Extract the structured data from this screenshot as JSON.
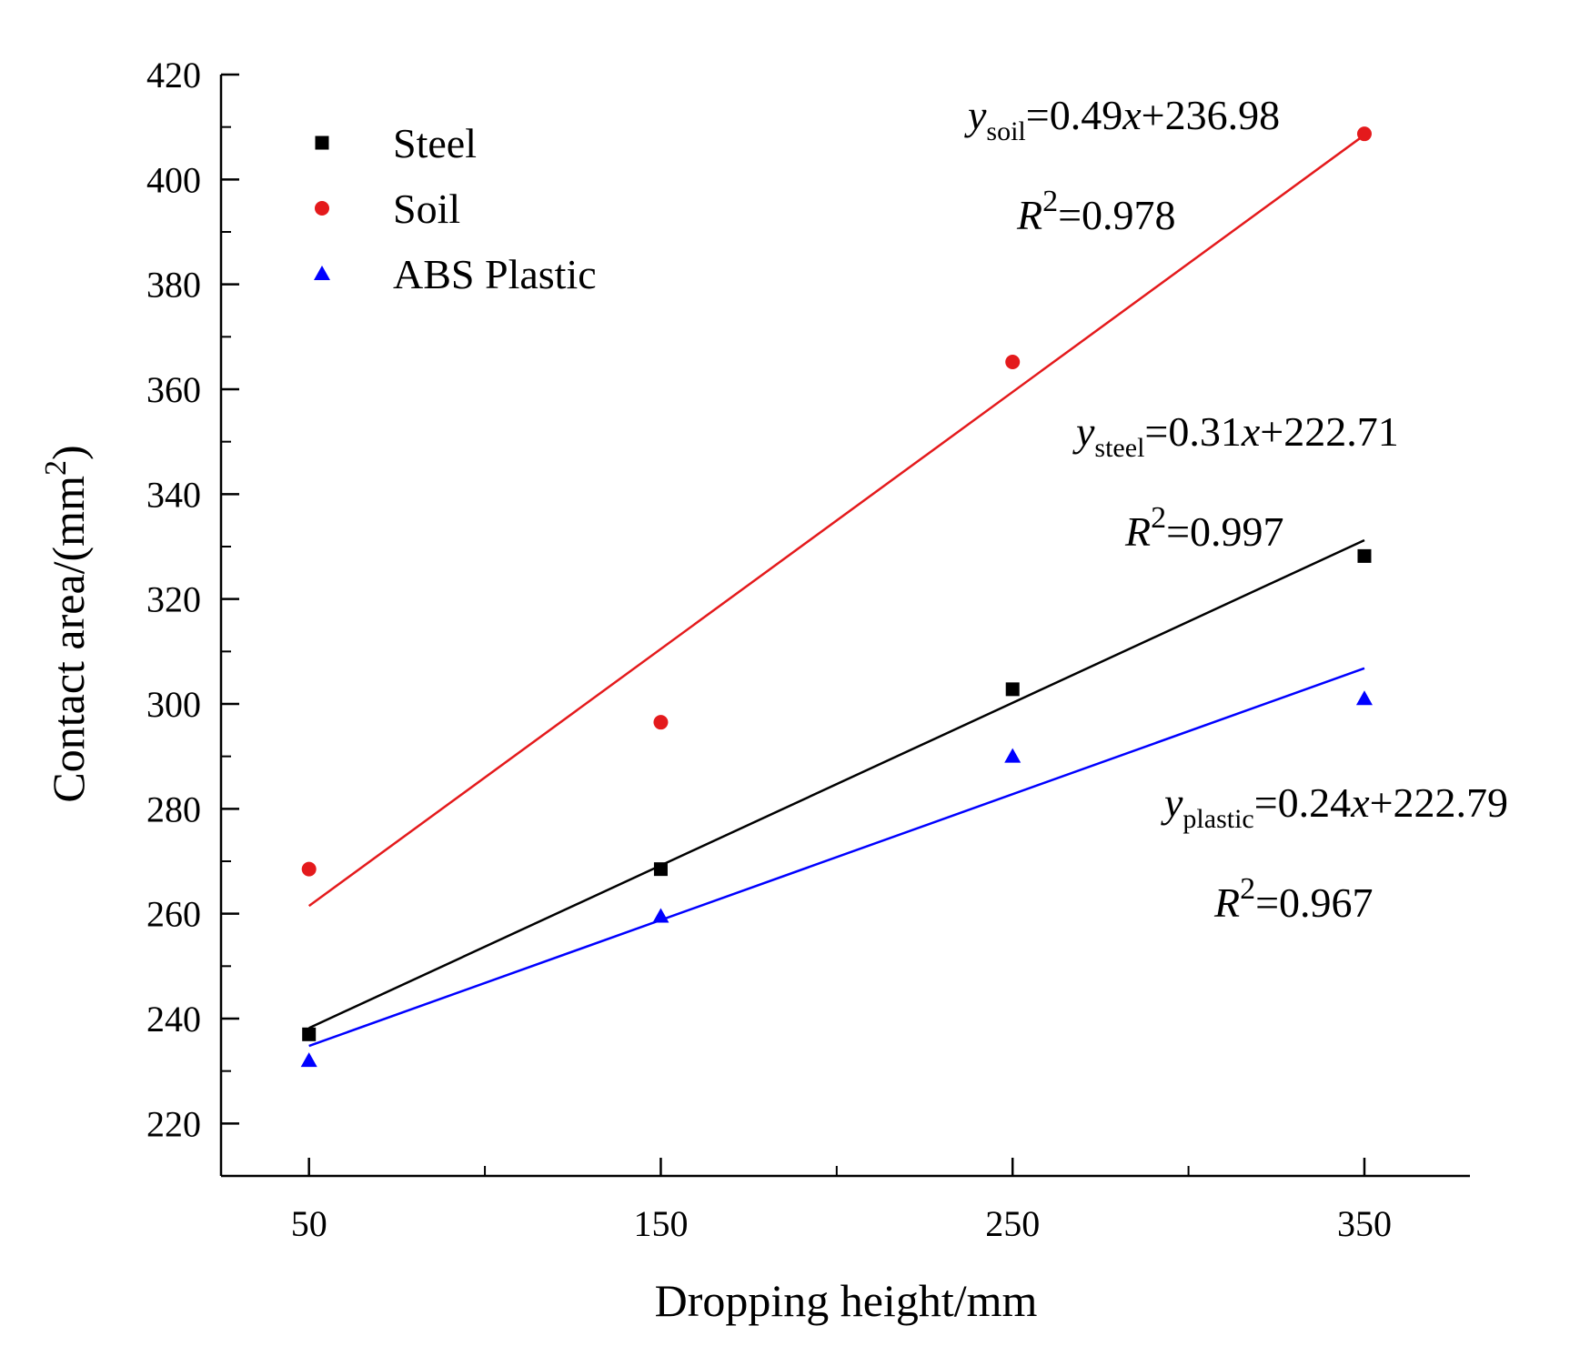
{
  "chart_data": {
    "type": "scatter",
    "xlabel": "Dropping height/mm",
    "ylabel": "Contact area/(mm",
    "ylabel_sup": "2",
    "ylabel_close": ")",
    "xlim": [
      25,
      380
    ],
    "ylim": [
      210,
      420
    ],
    "x_ticks": [
      50,
      150,
      250,
      350
    ],
    "x_minor_ticks": [
      100,
      200,
      300
    ],
    "y_ticks": [
      220,
      240,
      260,
      280,
      300,
      320,
      340,
      360,
      380,
      400,
      420
    ],
    "grid": false,
    "legend_position": "top-left",
    "series": [
      {
        "name": "Steel",
        "color": "#000000",
        "marker": "square",
        "x": [
          50,
          150,
          250,
          350
        ],
        "y": [
          237,
          268.5,
          302.8,
          328.2
        ],
        "fit": {
          "slope": 0.31,
          "intercept": 222.71
        },
        "equation": {
          "lhs": "y",
          "sub": "steel",
          "rhs": "=0.31",
          "x": "x",
          "rest": "+222.71"
        },
        "r2": {
          "lhs": "R",
          "sup": "2",
          "rhs": "=0.997"
        }
      },
      {
        "name": "Soil",
        "color": "#e41a1c",
        "marker": "circle",
        "x": [
          50,
          150,
          250,
          350
        ],
        "y": [
          268.5,
          296.5,
          365.2,
          408.7
        ],
        "fit": {
          "slope": 0.49,
          "intercept": 236.98
        },
        "equation": {
          "lhs": "y",
          "sub": "soil",
          "rhs": "=0.49",
          "x": "x",
          "rest": "+236.98"
        },
        "r2": {
          "lhs": "R",
          "sup": "2",
          "rhs": "=0.978"
        }
      },
      {
        "name": "ABS Plastic",
        "color": "#0000ff",
        "marker": "triangle",
        "x": [
          50,
          150,
          250,
          350
        ],
        "y": [
          232,
          259.5,
          290,
          301
        ],
        "fit": {
          "slope": 0.24,
          "intercept": 222.79
        },
        "equation": {
          "lhs": "y",
          "sub": "plastic",
          "rhs": "=0.24",
          "x": "x",
          "rest": "+222.79"
        },
        "r2": {
          "lhs": "R",
          "sup": "2",
          "rhs": "=0.967"
        }
      }
    ]
  }
}
